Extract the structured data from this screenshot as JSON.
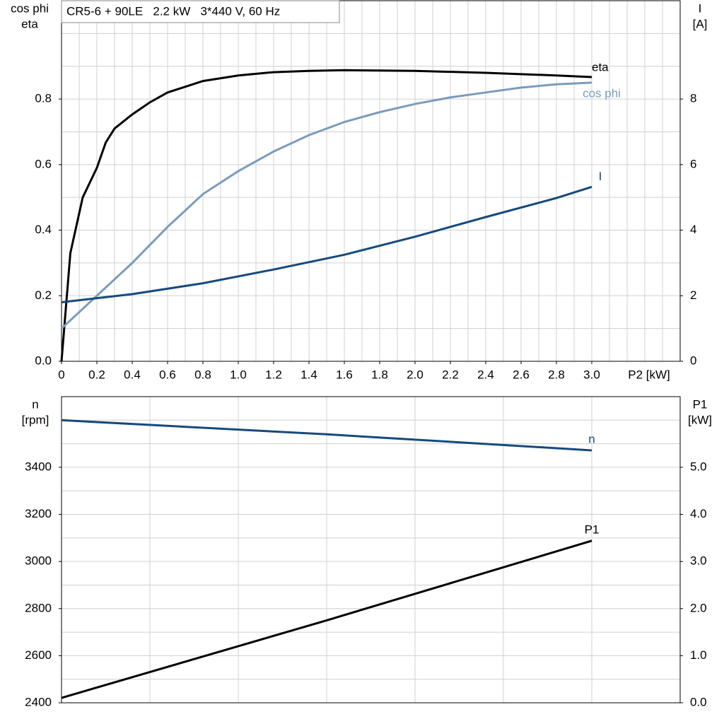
{
  "chart_data": [
    {
      "type": "line",
      "title": "CR5-6 + 90LE   2.2 kW   3*440 V, 60 Hz",
      "ylabel": [
        "cos phi",
        "eta"
      ],
      "y2label": [
        "I",
        "[A]"
      ],
      "xlabel": "P2 [kW]",
      "xlim": [
        0,
        3.5
      ],
      "xticks": [
        0,
        0.2,
        0.4,
        0.6,
        0.8,
        {
          "value": 1,
          "label": "1.0"
        },
        1.2,
        1.4,
        1.6,
        1.8,
        {
          "value": 2,
          "label": "2.0"
        },
        2.2,
        2.4,
        2.6,
        2.8,
        {
          "value": 3,
          "label": "3.0"
        }
      ],
      "ylim": [
        0,
        1.1
      ],
      "yticks": [
        {
          "value": 0,
          "label": "0.0"
        },
        0.2,
        0.4,
        0.6,
        0.8
      ],
      "y2lim": [
        0,
        11
      ],
      "y2ticks": [
        0,
        2,
        4,
        6,
        8
      ],
      "grid": true,
      "series": [
        {
          "name": "eta",
          "color": "#000000",
          "x": [
            0,
            0.05,
            0.12,
            0.2,
            0.25,
            0.3,
            0.4,
            0.5,
            0.6,
            0.8,
            1.0,
            1.2,
            1.4,
            1.6,
            2.0,
            2.4,
            2.8,
            3.0
          ],
          "values": [
            0,
            0.33,
            0.5,
            0.59,
            0.667,
            0.71,
            0.753,
            0.79,
            0.82,
            0.855,
            0.872,
            0.882,
            0.886,
            0.888,
            0.886,
            0.88,
            0.872,
            0.867
          ]
        },
        {
          "name": "cos phi",
          "color": "#7a9cbc",
          "x": [
            0,
            0.2,
            0.4,
            0.6,
            0.8,
            1.0,
            1.2,
            1.4,
            1.6,
            1.8,
            2.0,
            2.2,
            2.4,
            2.6,
            2.8,
            3.0
          ],
          "values": [
            0.1,
            0.2,
            0.3,
            0.41,
            0.51,
            0.58,
            0.64,
            0.69,
            0.73,
            0.76,
            0.785,
            0.805,
            0.82,
            0.835,
            0.845,
            0.85
          ]
        },
        {
          "name": "I",
          "color": "#154a7e",
          "axis": "y2",
          "x": [
            0,
            0.4,
            0.8,
            1.2,
            1.6,
            2.0,
            2.4,
            2.8,
            3.0
          ],
          "values": [
            1.8,
            2.05,
            2.38,
            2.8,
            3.25,
            3.8,
            4.4,
            4.98,
            5.32
          ]
        }
      ]
    },
    {
      "type": "line",
      "ylabel": [
        "n",
        "[rpm]"
      ],
      "y2label": [
        "P1",
        "[kW]"
      ],
      "xlim": [
        0,
        3.5
      ],
      "ylim": [
        2400,
        3700
      ],
      "yticks": [
        2400,
        2600,
        2800,
        3000,
        3200,
        3400
      ],
      "y2lim": [
        0,
        6.5
      ],
      "y2ticks": [
        {
          "value": 0,
          "label": "0.0"
        },
        {
          "value": 1,
          "label": "1.0"
        },
        {
          "value": 2,
          "label": "2.0"
        },
        {
          "value": 3,
          "label": "3.0"
        },
        {
          "value": 4,
          "label": "4.0"
        },
        {
          "value": 5,
          "label": "5.0"
        }
      ],
      "grid": true,
      "series": [
        {
          "name": "n",
          "color": "#154a7e",
          "x": [
            0,
            1.5,
            3.0
          ],
          "values": [
            3600,
            3540,
            3472
          ]
        },
        {
          "name": "P1",
          "color": "#000000",
          "axis": "y2",
          "x": [
            0,
            1.5,
            3.0
          ],
          "values": [
            0.105,
            1.75,
            3.44
          ]
        }
      ]
    }
  ]
}
